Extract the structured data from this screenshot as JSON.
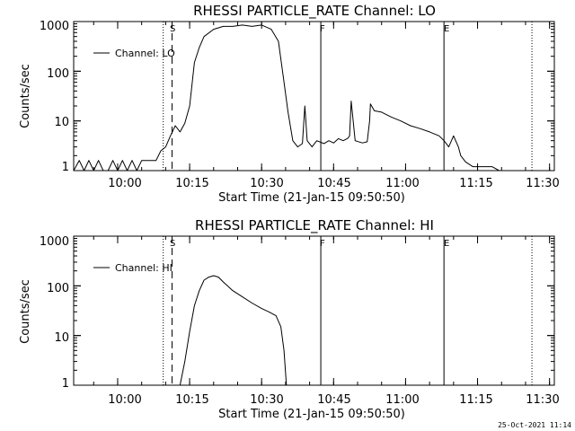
{
  "footer": {
    "timestamp": "25-Oct-2021 11:14"
  },
  "chart_data": [
    {
      "type": "line",
      "title": "RHESSI PARTICLE_RATE Channel: LO",
      "xlabel": "Start Time (21-Jan-15 09:50:50)",
      "ylabel": "Counts/sec",
      "x_ticks": [
        "10:00",
        "10:15",
        "10:30",
        "10:45",
        "11:00",
        "11:15",
        "11:30"
      ],
      "y_ticks": [
        "1",
        "10",
        "100",
        "1000"
      ],
      "y_scale": "log",
      "xlim": [
        "09:50:50",
        "11:31:00"
      ],
      "ylim": [
        1,
        1000
      ],
      "legend": {
        "label": "Channel: LO",
        "placement": "top-left"
      },
      "markers": [
        {
          "label": "S",
          "time": "10:11:20",
          "style": "dashed"
        },
        {
          "label": "F",
          "time": "10:42:20",
          "style": "solid"
        },
        {
          "label": "E",
          "time": "11:08:00",
          "style": "solid"
        }
      ],
      "dotted_lines": [
        "10:09:30",
        "11:26:20"
      ],
      "series": [
        {
          "name": "Channel: LO",
          "x": [
            "09:50:50",
            "09:52:00",
            "09:53:00",
            "09:54:00",
            "09:55:00",
            "09:56:00",
            "09:57:00",
            "09:58:00",
            "09:59:00",
            "10:00:00",
            "10:01:00",
            "10:02:00",
            "10:03:00",
            "10:04:00",
            "10:05:00",
            "10:06:00",
            "10:07:00",
            "10:08:00",
            "10:09:00",
            "10:10:00",
            "10:11:00",
            "10:12:00",
            "10:13:00",
            "10:14:00",
            "10:15:00",
            "10:16:00",
            "10:17:00",
            "10:18:00",
            "10:20:00",
            "10:22:00",
            "10:24:00",
            "10:26:00",
            "10:28:00",
            "10:30:00",
            "10:32:00",
            "10:33:30",
            "10:34:30",
            "10:35:30",
            "10:36:30",
            "10:37:30",
            "10:38:30",
            "10:39:00",
            "10:39:30",
            "10:40:30",
            "10:41:30",
            "10:43:00",
            "10:44:00",
            "10:45:00",
            "10:46:00",
            "10:47:00",
            "10:48:00",
            "10:48:20",
            "10:48:40",
            "10:49:30",
            "10:51:00",
            "10:52:00",
            "10:52:30",
            "10:52:40",
            "10:53:30",
            "10:55:00",
            "10:57:00",
            "10:59:00",
            "11:01:00",
            "11:03:00",
            "11:05:00",
            "11:07:00",
            "11:08:00",
            "11:09:00",
            "11:10:00",
            "11:11:00",
            "11:11:30",
            "11:12:30",
            "11:14:00",
            "11:16:00",
            "11:18:00",
            "11:19:30"
          ],
          "values": [
            1,
            1.6,
            1,
            1.6,
            1,
            1.6,
            1,
            1,
            1.6,
            1,
            1.6,
            1,
            1.6,
            1,
            1.6,
            1.6,
            1.6,
            1.6,
            2.5,
            3,
            5,
            8,
            6,
            9,
            20,
            150,
            300,
            500,
            700,
            800,
            800,
            850,
            800,
            850,
            700,
            400,
            80,
            15,
            4,
            3,
            3.5,
            20,
            4,
            3,
            4,
            3.5,
            4,
            3.6,
            4.4,
            4,
            4.5,
            5,
            25,
            4,
            3.6,
            3.8,
            10,
            22,
            16,
            15,
            12,
            10,
            8,
            7,
            6,
            5,
            4,
            3,
            5,
            3,
            2,
            1.5,
            1.2,
            1.2,
            1.2,
            1
          ]
        }
      ]
    },
    {
      "type": "line",
      "title": "RHESSI PARTICLE_RATE Channel: HI",
      "xlabel": "Start Time (21-Jan-15 09:50:50)",
      "ylabel": "Counts/sec",
      "x_ticks": [
        "10:00",
        "10:15",
        "10:30",
        "10:45",
        "11:00",
        "11:15",
        "11:30"
      ],
      "y_ticks": [
        "1",
        "10",
        "100",
        "1000"
      ],
      "y_scale": "log",
      "xlim": [
        "09:50:50",
        "11:31:00"
      ],
      "ylim": [
        1,
        1000
      ],
      "legend": {
        "label": "Channel: HI",
        "placement": "top-left"
      },
      "markers": [
        {
          "label": "S",
          "time": "10:11:20",
          "style": "dashed"
        },
        {
          "label": "F",
          "time": "10:42:20",
          "style": "solid"
        },
        {
          "label": "E",
          "time": "11:08:00",
          "style": "solid"
        }
      ],
      "dotted_lines": [
        "10:09:30",
        "11:26:20"
      ],
      "series": [
        {
          "name": "Channel: HI",
          "x": [
            "10:13:00",
            "10:14:00",
            "10:15:00",
            "10:16:00",
            "10:17:00",
            "10:18:00",
            "10:19:00",
            "10:20:00",
            "10:21:00",
            "10:22:00",
            "10:24:00",
            "10:26:00",
            "10:28:00",
            "10:30:00",
            "10:31:30",
            "10:33:00",
            "10:34:00",
            "10:34:40",
            "10:35:10"
          ],
          "values": [
            1,
            3,
            12,
            40,
            80,
            130,
            150,
            160,
            150,
            120,
            80,
            60,
            45,
            35,
            30,
            25,
            15,
            5,
            1
          ]
        }
      ]
    }
  ]
}
